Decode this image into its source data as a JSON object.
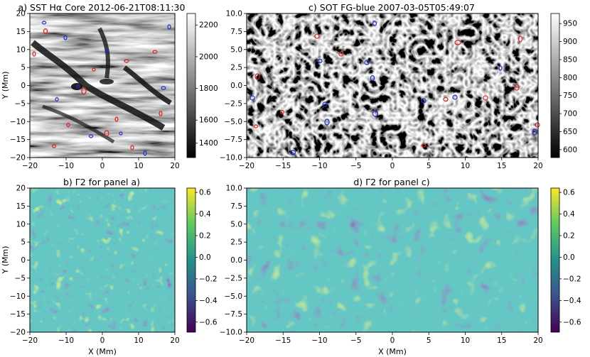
{
  "panels": [
    {
      "id": "a",
      "title": "a) SST Hα Core 2012-06-21T08:11:30",
      "ylabel": "Y (Mm)",
      "xlabel": "",
      "xticks": [
        "−20",
        "−10",
        "0",
        "10",
        "20"
      ],
      "yticks": [
        "20",
        "15",
        "10",
        "5",
        "0",
        "−5",
        "−10",
        "−15",
        "−20"
      ],
      "colorbar": {
        "ticks": [
          "2200",
          "2000",
          "1800",
          "1600",
          "1400"
        ],
        "colormap": "gray"
      }
    },
    {
      "id": "c",
      "title": "c) SOT FG-blue 2007-03-05T05:49:07",
      "ylabel": "",
      "xlabel": "",
      "xticks": [
        "−20",
        "−15",
        "−10",
        "−5",
        "0",
        "5",
        "10",
        "15",
        "20"
      ],
      "yticks": [
        "10.0",
        "7.5",
        "5.0",
        "2.5",
        "0.0",
        "−2.5",
        "−5.0",
        "−7.5",
        "−10.0"
      ],
      "colorbar": {
        "ticks": [
          "950",
          "900",
          "850",
          "800",
          "750",
          "700",
          "650",
          "600"
        ],
        "colormap": "gray"
      }
    },
    {
      "id": "b",
      "title": "b) Γ2 for panel a)",
      "ylabel": "Y (Mm)",
      "xlabel": "X (Mm)",
      "xticks": [
        "−20",
        "−10",
        "0",
        "10",
        "20"
      ],
      "yticks": [
        "20",
        "15",
        "10",
        "5",
        "0",
        "−5",
        "−10",
        "−15",
        "−20"
      ],
      "colorbar": {
        "ticks": [
          "0.6",
          "0.4",
          "0.2",
          "0.0",
          "−0.2",
          "−0.4",
          "−0.6"
        ],
        "colormap": "viridis"
      }
    },
    {
      "id": "d",
      "title": "d) Γ2 for panel c)",
      "ylabel": "",
      "xlabel": "X (Mm)",
      "xticks": [
        "−20",
        "−15",
        "−10",
        "−5",
        "0",
        "5",
        "10",
        "15",
        "20"
      ],
      "yticks": [
        "10.0",
        "7.5",
        "5.0",
        "2.5",
        "0.0",
        "−2.5",
        "−5.0",
        "−7.5",
        "−10.0"
      ],
      "colorbar": {
        "ticks": [
          "0.6",
          "0.4",
          "0.2",
          "0.0",
          "−0.2",
          "−0.4",
          "−0.6"
        ],
        "colormap": "viridis"
      }
    }
  ],
  "contour_colors": {
    "positive": "#e02020",
    "negative": "#1f2fd0"
  }
}
